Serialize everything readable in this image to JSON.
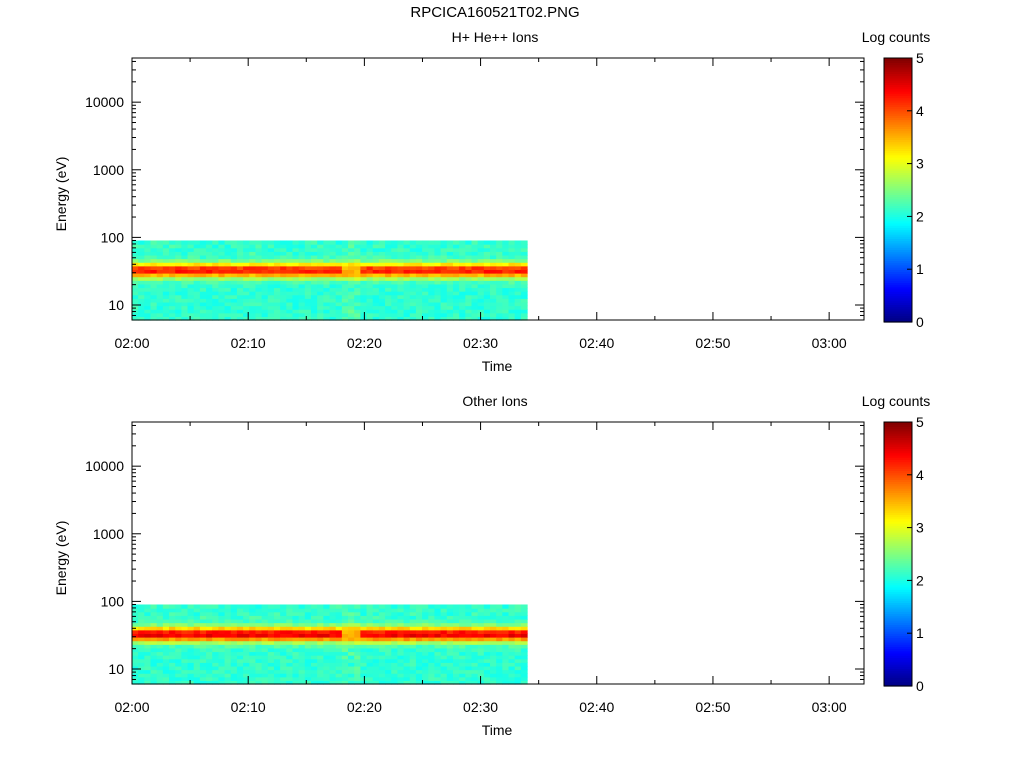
{
  "figure": {
    "title": "RPCICA160521T02.PNG"
  },
  "chart_data": [
    {
      "type": "heatmap",
      "title": "H+ He++ Ions",
      "xlabel": "Time",
      "ylabel": "Energy (eV)",
      "y_scale": "log",
      "ylim": [
        6,
        45000
      ],
      "xlim": [
        "02:00",
        "03:03"
      ],
      "x_ticks": [
        "02:00",
        "02:10",
        "02:20",
        "02:30",
        "02:40",
        "02:50",
        "03:00"
      ],
      "y_ticks": [
        "10",
        "100",
        "1000",
        "10000"
      ],
      "data_time_range": [
        "02:00",
        "02:34"
      ],
      "data_energy_range": [
        6,
        90
      ],
      "peak_energy": 33,
      "dip_time": "02:19",
      "colorbar": {
        "label": "Log counts",
        "range": [
          0,
          5
        ],
        "ticks": [
          "0",
          "1",
          "2",
          "3",
          "4",
          "5"
        ],
        "colormap": "jet"
      }
    },
    {
      "type": "heatmap",
      "title": "Other Ions",
      "xlabel": "Time",
      "ylabel": "Energy (eV)",
      "y_scale": "log",
      "ylim": [
        6,
        45000
      ],
      "xlim": [
        "02:00",
        "03:03"
      ],
      "x_ticks": [
        "02:00",
        "02:10",
        "02:20",
        "02:30",
        "02:40",
        "02:50",
        "03:00"
      ],
      "y_ticks": [
        "10",
        "100",
        "1000",
        "10000"
      ],
      "data_time_range": [
        "02:00",
        "02:34"
      ],
      "data_energy_range": [
        6,
        90
      ],
      "peak_energy": 33,
      "dip_time": "02:19",
      "colorbar": {
        "label": "Log counts",
        "range": [
          0,
          5
        ],
        "ticks": [
          "0",
          "1",
          "2",
          "3",
          "4",
          "5"
        ],
        "colormap": "jet"
      }
    }
  ]
}
